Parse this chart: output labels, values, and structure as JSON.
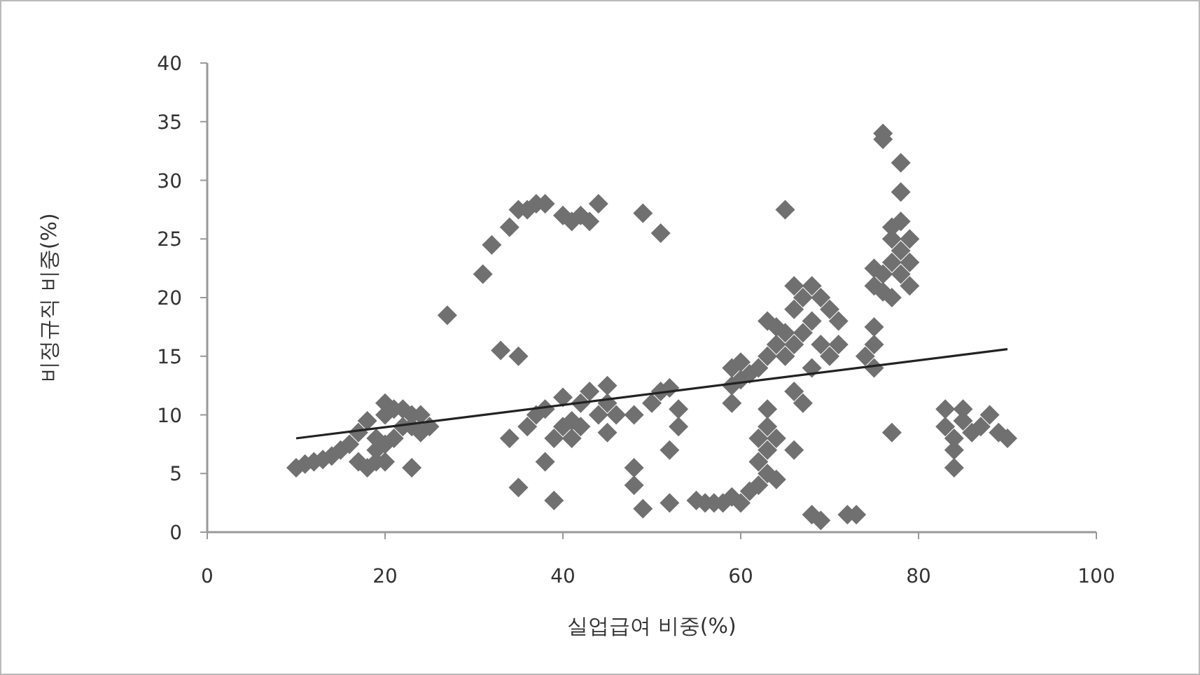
{
  "chart_data": {
    "type": "scatter",
    "xlabel": "실업급여 비중(%)",
    "ylabel": "비정규직 비중(%)",
    "xlim": [
      0,
      100
    ],
    "ylim": [
      0,
      40
    ],
    "xticks": [
      0,
      20,
      40,
      60,
      80,
      100
    ],
    "yticks": [
      0,
      5,
      10,
      15,
      20,
      25,
      30,
      35,
      40
    ],
    "marker": "diamond",
    "grid": false,
    "series": [
      {
        "color": "#707070",
        "x": [
          10,
          11,
          12,
          13,
          14,
          15,
          16,
          17,
          17,
          18,
          18,
          19,
          19,
          19,
          20,
          20,
          20,
          20,
          21,
          21,
          22,
          22,
          23,
          23,
          23,
          24,
          24,
          25,
          27,
          31,
          32,
          33,
          34,
          34,
          35,
          35,
          35,
          36,
          36,
          37,
          37,
          38,
          38,
          38,
          39,
          39,
          40,
          40,
          40,
          41,
          41,
          41,
          42,
          42,
          42,
          43,
          43,
          44,
          44,
          45,
          45,
          45,
          46,
          48,
          48,
          48,
          49,
          49,
          50,
          51,
          51,
          52,
          52,
          52,
          53,
          53,
          55,
          56,
          57,
          58,
          59,
          59,
          59,
          59,
          60,
          60,
          60,
          61,
          61,
          62,
          62,
          62,
          62,
          63,
          63,
          63,
          63,
          63,
          63,
          64,
          64,
          64,
          64,
          65,
          65,
          65,
          66,
          66,
          66,
          66,
          66,
          67,
          67,
          67,
          68,
          68,
          68,
          68,
          69,
          69,
          69,
          70,
          70,
          71,
          71,
          72,
          73,
          74,
          75,
          75,
          75,
          75,
          75,
          76,
          76,
          76,
          76,
          77,
          77,
          77,
          77,
          77,
          78,
          78,
          78,
          78,
          78,
          79,
          79,
          79,
          83,
          83,
          84,
          84,
          84,
          85,
          85,
          86,
          87,
          88,
          89,
          90
        ],
        "values": [
          5.5,
          5.8,
          6,
          6.2,
          6.5,
          7,
          7.5,
          6,
          8.5,
          5.5,
          9.5,
          6,
          7,
          8,
          6,
          7.5,
          10,
          11,
          10.5,
          8,
          9,
          10.5,
          5.5,
          9,
          10,
          8.5,
          10,
          9,
          18.5,
          22,
          24.5,
          15.5,
          8,
          26,
          3.8,
          15,
          27.5,
          9,
          27.5,
          10,
          28,
          6,
          10.5,
          28,
          8,
          2.7,
          9,
          11.5,
          27,
          9.5,
          26.5,
          8,
          27,
          11,
          9,
          26.5,
          12,
          10,
          28,
          8.5,
          12.5,
          11,
          10,
          5.5,
          4,
          10,
          27.2,
          2,
          11,
          12,
          25.5,
          2.5,
          12.3,
          7,
          9,
          10.5,
          2.7,
          2.5,
          2.5,
          2.5,
          3,
          11,
          12.5,
          14,
          2.5,
          13,
          14.5,
          3.5,
          13.5,
          4,
          6,
          8,
          14,
          5,
          7,
          9,
          10.5,
          15,
          18,
          4.5,
          8,
          16,
          17.5,
          27.5,
          15,
          17,
          7,
          12,
          16,
          19,
          21,
          11,
          17,
          20,
          1.5,
          14,
          18,
          21,
          1,
          16,
          20,
          15,
          19,
          16,
          18,
          1.5,
          1.5,
          15,
          14,
          16,
          17.5,
          21,
          22.5,
          33.5,
          34,
          20.5,
          22,
          8.5,
          20,
          23,
          25,
          26,
          31.5,
          29,
          22,
          24,
          26.5,
          21,
          23,
          25,
          9,
          10.5,
          7,
          8,
          5.5,
          9.5,
          10.5,
          8.5,
          9,
          10,
          8.5,
          8
        ]
      },
      {
        "type": "line",
        "marker": "none",
        "color": "#222222",
        "x": [
          10,
          90
        ],
        "values": [
          8,
          15.6
        ]
      }
    ]
  }
}
